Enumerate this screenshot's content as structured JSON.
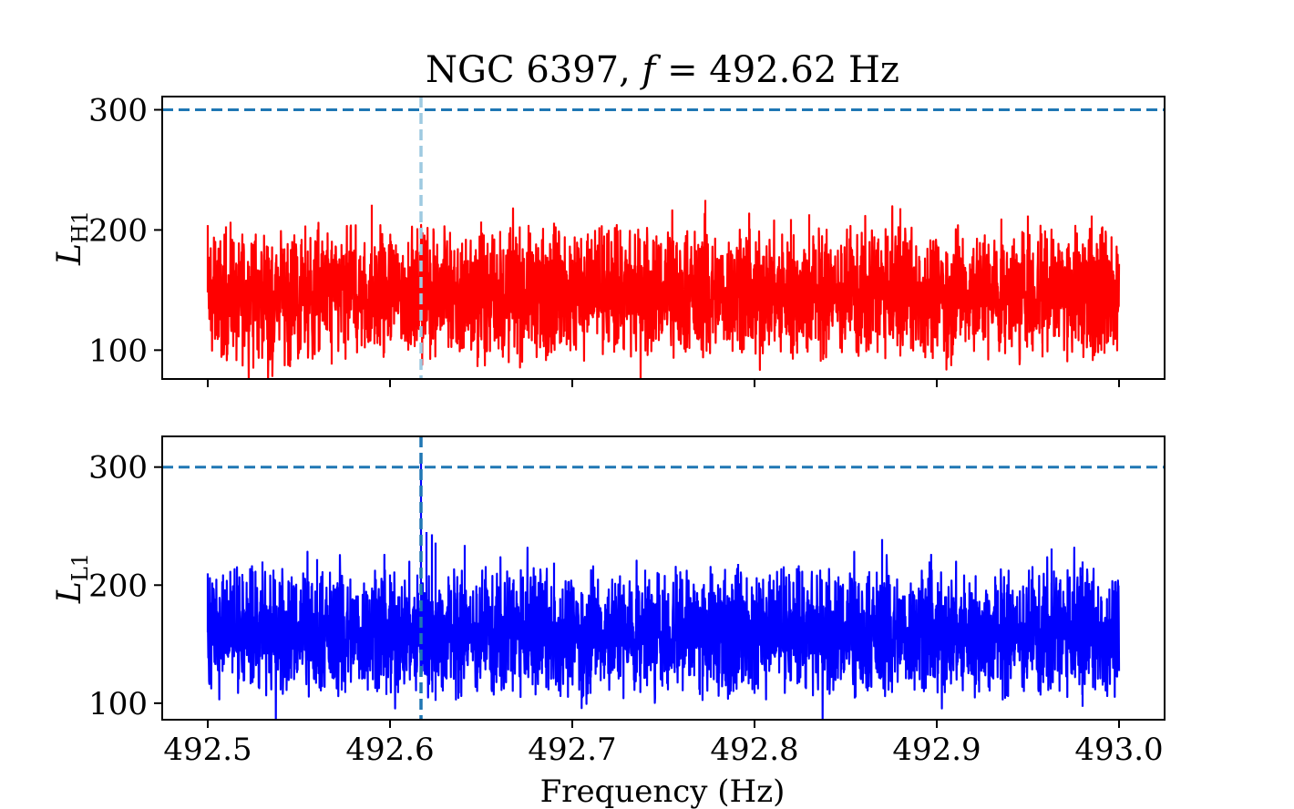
{
  "chart_data": {
    "type": "line",
    "title": "NGC 6397, f = 492.62 Hz",
    "title_parts": {
      "prefix": "NGC 6397, ",
      "var": "f",
      "suffix": " = 492.62 Hz"
    },
    "xlabel": "Frequency (Hz)",
    "xlim": [
      492.475,
      493.025
    ],
    "xticks": [
      492.5,
      492.6,
      492.7,
      492.8,
      492.9,
      493.0
    ],
    "xtick_labels": [
      "492.5",
      "492.6",
      "492.7",
      "492.8",
      "492.9",
      "493.0"
    ],
    "colors": {
      "threshold": "#1f77b4",
      "marker_top": "#9ecae1",
      "marker_bottom": "#1f77b4"
    },
    "panels": [
      {
        "ylabel": "L",
        "ylabel_sub": "H1",
        "ylim": [
          76,
          311
        ],
        "yticks": [
          100,
          200,
          300
        ],
        "ytick_labels": [
          "100",
          "200",
          "300"
        ],
        "threshold": 300,
        "marker_frequency": 492.617,
        "series": {
          "color": "#ff0000",
          "x_start": 492.5,
          "x_end": 493.0,
          "baseline": 148,
          "upper_envelope": 180,
          "lower_envelope": 118,
          "peaks": [
            [
              492.5,
              204
            ],
            [
              492.51,
              203
            ],
            [
              492.59,
              221
            ],
            [
              492.61,
              190
            ],
            [
              492.65,
              207
            ],
            [
              492.69,
              206
            ],
            [
              492.72,
              200
            ],
            [
              492.773,
              225
            ],
            [
              492.82,
              209
            ],
            [
              492.83,
              213
            ],
            [
              492.88,
              218
            ],
            [
              492.95,
              212
            ],
            [
              492.985,
              212
            ]
          ],
          "troughs": [
            [
              492.568,
              88
            ],
            [
              492.648,
              86
            ],
            [
              492.723,
              98
            ],
            [
              492.82,
              97
            ],
            [
              492.897,
              98
            ],
            [
              492.958,
              94
            ],
            [
              492.992,
              97
            ]
          ]
        }
      },
      {
        "ylabel": "L",
        "ylabel_sub": "L1",
        "ylim": [
          86,
          326
        ],
        "yticks": [
          100,
          200,
          300
        ],
        "ytick_labels": [
          "100",
          "200",
          "300"
        ],
        "threshold": 300,
        "marker_frequency": 492.617,
        "series": {
          "color": "#0000ff",
          "x_start": 492.5,
          "x_end": 493.0,
          "baseline": 160,
          "upper_envelope": 192,
          "lower_envelope": 130,
          "peaks": [
            [
              492.5,
              210
            ],
            [
              492.53,
              220
            ],
            [
              492.56,
              222
            ],
            [
              492.6,
              209
            ],
            [
              492.617,
              310
            ],
            [
              492.62,
              245
            ],
            [
              492.623,
              243
            ],
            [
              492.625,
              236
            ],
            [
              492.641,
              234
            ],
            [
              492.69,
              219
            ],
            [
              492.74,
              213
            ],
            [
              492.791,
              218
            ],
            [
              492.87,
              239
            ],
            [
              492.896,
              220
            ],
            [
              492.963,
              231
            ],
            [
              492.98,
              220
            ]
          ],
          "troughs": [
            [
              492.598,
              107
            ],
            [
              492.625,
              102
            ],
            [
              492.71,
              108
            ],
            [
              492.77,
              107
            ],
            [
              492.8,
              108
            ],
            [
              492.855,
              104
            ],
            [
              492.938,
              106
            ],
            [
              492.98,
              97
            ]
          ]
        }
      }
    ]
  }
}
